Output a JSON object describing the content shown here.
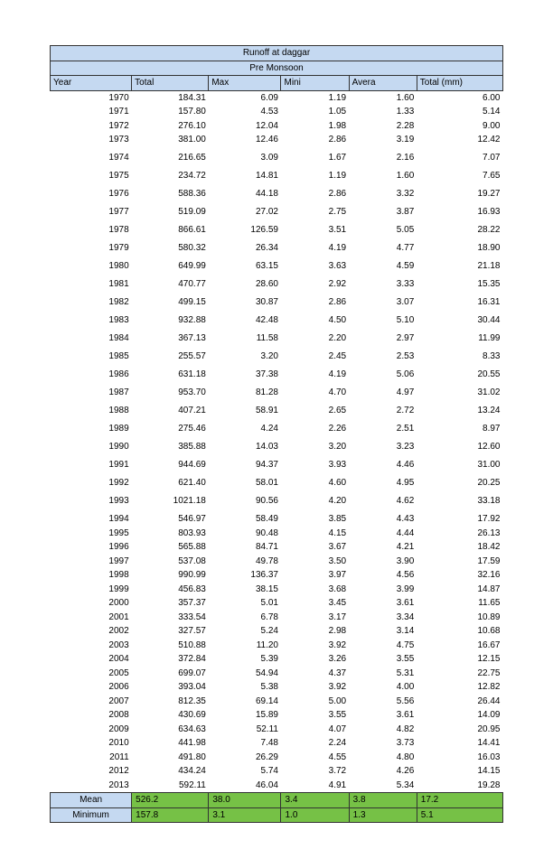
{
  "title": "Runoff at daggar",
  "subtitle": "Pre Monsoon",
  "columns": [
    "Year",
    "Total",
    "Max",
    "Mini",
    "Avera",
    "Total (mm)"
  ],
  "rows": [
    [
      "1970",
      "184.31",
      "6.09",
      "1.19",
      "1.60",
      "6.00"
    ],
    [
      "1971",
      "157.80",
      "4.53",
      "1.05",
      "1.33",
      "5.14"
    ],
    [
      "1972",
      "276.10",
      "12.04",
      "1.98",
      "2.28",
      "9.00"
    ],
    [
      "1973",
      "381.00",
      "12.46",
      "2.86",
      "3.19",
      "12.42"
    ],
    [
      "1974",
      "216.65",
      "3.09",
      "1.67",
      "2.16",
      "7.07"
    ],
    [
      "1975",
      "234.72",
      "14.81",
      "1.19",
      "1.60",
      "7.65"
    ],
    [
      "1976",
      "588.36",
      "44.18",
      "2.86",
      "3.32",
      "19.27"
    ],
    [
      "1977",
      "519.09",
      "27.02",
      "2.75",
      "3.87",
      "16.93"
    ],
    [
      "1978",
      "866.61",
      "126.59",
      "3.51",
      "5.05",
      "28.22"
    ],
    [
      "1979",
      "580.32",
      "26.34",
      "4.19",
      "4.77",
      "18.90"
    ],
    [
      "1980",
      "649.99",
      "63.15",
      "3.63",
      "4.59",
      "21.18"
    ],
    [
      "1981",
      "470.77",
      "28.60",
      "2.92",
      "3.33",
      "15.35"
    ],
    [
      "1982",
      "499.15",
      "30.87",
      "2.86",
      "3.07",
      "16.31"
    ],
    [
      "1983",
      "932.88",
      "42.48",
      "4.50",
      "5.10",
      "30.44"
    ],
    [
      "1984",
      "367.13",
      "11.58",
      "2.20",
      "2.97",
      "11.99"
    ],
    [
      "1985",
      "255.57",
      "3.20",
      "2.45",
      "2.53",
      "8.33"
    ],
    [
      "1986",
      "631.18",
      "37.38",
      "4.19",
      "5.06",
      "20.55"
    ],
    [
      "1987",
      "953.70",
      "81.28",
      "4.70",
      "4.97",
      "31.02"
    ],
    [
      "1988",
      "407.21",
      "58.91",
      "2.65",
      "2.72",
      "13.24"
    ],
    [
      "1989",
      "275.46",
      "4.24",
      "2.26",
      "2.51",
      "8.97"
    ],
    [
      "1990",
      "385.88",
      "14.03",
      "3.20",
      "3.23",
      "12.60"
    ],
    [
      "1991",
      "944.69",
      "94.37",
      "3.93",
      "4.46",
      "31.00"
    ],
    [
      "1992",
      "621.40",
      "58.01",
      "4.60",
      "4.95",
      "20.25"
    ],
    [
      "1993",
      "1021.18",
      "90.56",
      "4.20",
      "4.62",
      "33.18"
    ],
    [
      "1994",
      "546.97",
      "58.49",
      "3.85",
      "4.43",
      "17.92"
    ],
    [
      "1995",
      "803.93",
      "90.48",
      "4.15",
      "4.44",
      "26.13"
    ],
    [
      "1996",
      "565.88",
      "84.71",
      "3.67",
      "4.21",
      "18.42"
    ],
    [
      "1997",
      "537.08",
      "49.78",
      "3.50",
      "3.90",
      "17.59"
    ],
    [
      "1998",
      "990.99",
      "136.37",
      "3.97",
      "4.56",
      "32.16"
    ],
    [
      "1999",
      "456.83",
      "38.15",
      "3.68",
      "3.99",
      "14.87"
    ],
    [
      "2000",
      "357.37",
      "5.01",
      "3.45",
      "3.61",
      "11.65"
    ],
    [
      "2001",
      "333.54",
      "6.78",
      "3.17",
      "3.34",
      "10.89"
    ],
    [
      "2002",
      "327.57",
      "5.24",
      "2.98",
      "3.14",
      "10.68"
    ],
    [
      "2003",
      "510.88",
      "11.20",
      "3.92",
      "4.75",
      "16.67"
    ],
    [
      "2004",
      "372.84",
      "5.39",
      "3.26",
      "3.55",
      "12.15"
    ],
    [
      "2005",
      "699.07",
      "54.94",
      "4.37",
      "5.31",
      "22.75"
    ],
    [
      "2006",
      "393.04",
      "5.38",
      "3.92",
      "4.00",
      "12.82"
    ],
    [
      "2007",
      "812.35",
      "69.14",
      "5.00",
      "5.56",
      "26.44"
    ],
    [
      "2008",
      "430.69",
      "15.89",
      "3.55",
      "3.61",
      "14.09"
    ],
    [
      "2009",
      "634.63",
      "52.11",
      "4.07",
      "4.82",
      "20.95"
    ],
    [
      "2010",
      "441.98",
      "7.48",
      "2.24",
      "3.73",
      "14.41"
    ],
    [
      "2011",
      "491.80",
      "26.29",
      "4.55",
      "4.80",
      "16.03"
    ],
    [
      "2012",
      "434.24",
      "5.74",
      "3.72",
      "4.26",
      "14.15"
    ],
    [
      "2013",
      "592.11",
      "46.04",
      "4.91",
      "5.34",
      "19.28"
    ]
  ],
  "summary": [
    {
      "label": "Mean",
      "vals": [
        "526.2",
        "38.0",
        "3.4",
        "3.8",
        "17.2"
      ]
    },
    {
      "label": "Minimum",
      "vals": [
        "157.8",
        "3.1",
        "1.0",
        "1.3",
        "5.1"
      ]
    }
  ],
  "gapAfterRows": [
    3,
    4,
    5,
    6,
    7,
    8,
    9,
    10,
    11,
    12,
    13,
    14,
    15,
    16,
    17,
    18,
    19,
    20,
    21,
    22,
    23
  ]
}
